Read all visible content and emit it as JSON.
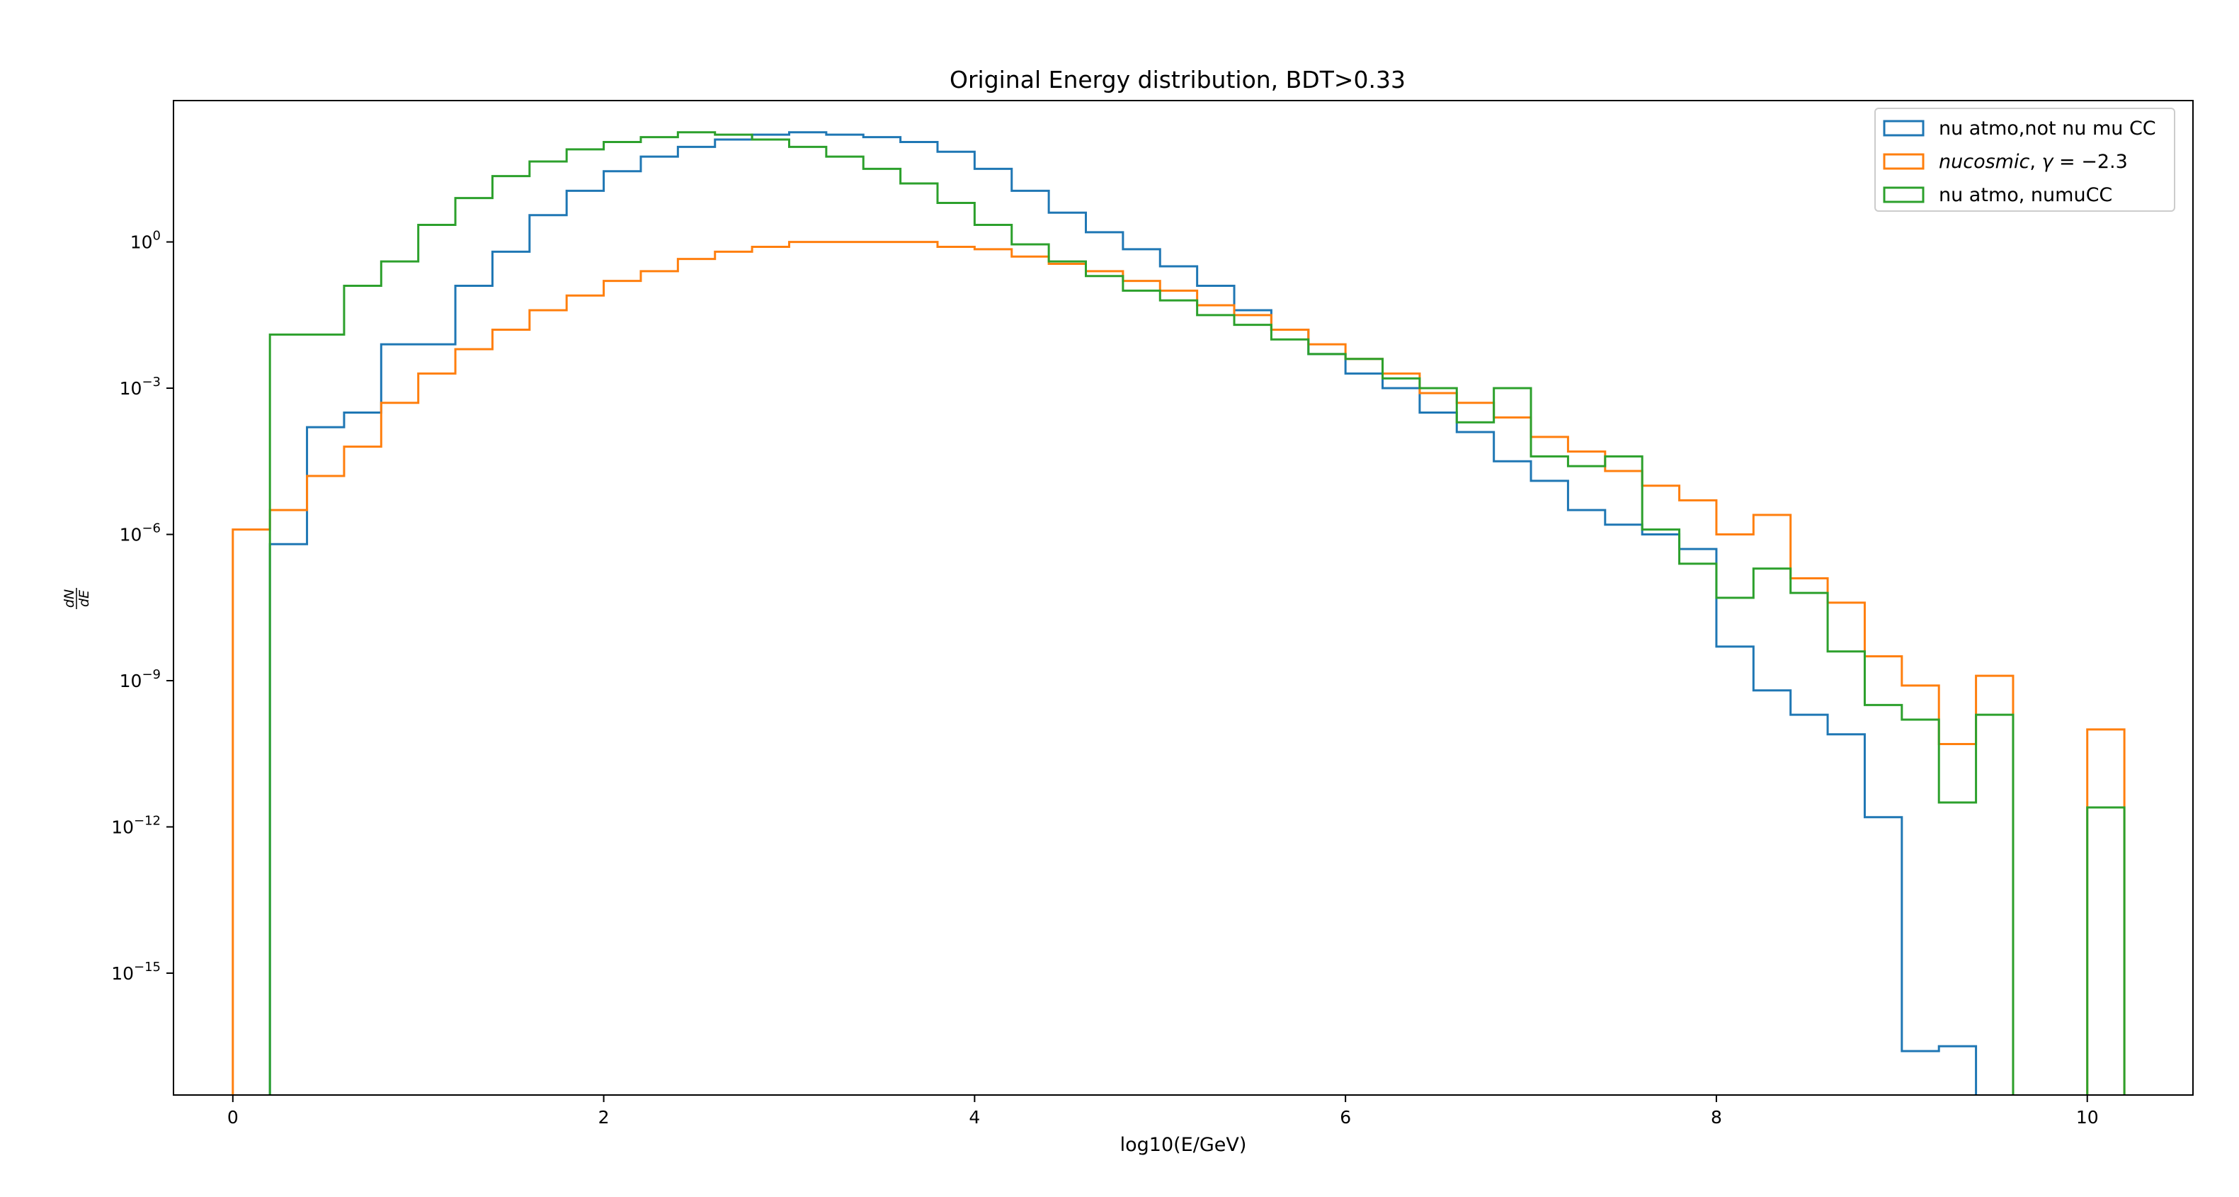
{
  "chart_data": {
    "type": "histogram-step",
    "title": "Original Energy distribution, BDT>0.33",
    "xlabel": "log10(E/GeV)",
    "ylabel": "dN/dE",
    "ylabel_num": "dN",
    "ylabel_den": "dE",
    "xlim": [
      -0.32,
      10.57
    ],
    "ylim_log10": [
      -17.5,
      2.9
    ],
    "yscale": "log",
    "grid": false,
    "legend_position": "top-right",
    "x_ticks": [
      "0",
      "2",
      "4",
      "6",
      "8",
      "10"
    ],
    "y_ticks": [
      {
        "base": "10",
        "exp": "0"
      },
      {
        "base": "10",
        "exp": "−3"
      },
      {
        "base": "10",
        "exp": "−6"
      },
      {
        "base": "10",
        "exp": "−9"
      },
      {
        "base": "10",
        "exp": "−12"
      },
      {
        "base": "10",
        "exp": "−15"
      }
    ],
    "bin_edges": [
      0.0,
      0.2,
      0.4,
      0.6,
      0.8,
      1.0,
      1.2,
      1.4,
      1.6,
      1.8,
      2.0,
      2.2,
      2.4,
      2.6,
      2.8,
      3.0,
      3.2,
      3.4,
      3.6,
      3.8,
      4.0,
      4.2,
      4.4,
      4.6,
      4.8,
      5.0,
      5.2,
      5.4,
      5.6,
      5.8,
      6.0,
      6.2,
      6.4,
      6.6,
      6.8,
      7.0,
      7.2,
      7.4,
      7.6,
      7.8,
      8.0,
      8.2,
      8.4,
      8.6,
      8.8,
      9.0,
      9.2,
      9.4,
      9.6,
      9.8,
      10.0,
      10.2
    ],
    "series": [
      {
        "name": "nu atmo,not nu mu CC",
        "label_parts": [
          {
            "text": "nu atmo,not nu mu CC",
            "italic": false
          }
        ],
        "color": "#1f77b4",
        "log10_values": [
          null,
          -6.2,
          -3.8,
          -3.5,
          -2.1,
          -2.1,
          -0.9,
          -0.2,
          0.55,
          1.05,
          1.45,
          1.75,
          1.95,
          2.1,
          2.2,
          2.25,
          2.2,
          2.15,
          2.05,
          1.85,
          1.5,
          1.05,
          0.6,
          0.2,
          -0.15,
          -0.5,
          -0.9,
          -1.4,
          -1.8,
          -2.3,
          -2.7,
          -3.0,
          -3.5,
          -3.9,
          -4.5,
          -4.9,
          -5.5,
          -5.8,
          -6.0,
          -6.3,
          -8.3,
          -9.2,
          -9.7,
          -10.1,
          -11.8,
          -16.6,
          -16.5,
          null,
          null,
          null,
          null,
          null
        ]
      },
      {
        "name": "nucosmic, γ= −2.3",
        "label_parts": [
          {
            "text": "nucosmic",
            "italic": true
          },
          {
            "text": ", ",
            "italic": false
          },
          {
            "text": "γ",
            "italic": true
          },
          {
            "text": " = −2.3",
            "italic": false
          }
        ],
        "color": "#ff7f0e",
        "log10_values": [
          -5.9,
          -5.5,
          -4.8,
          -4.2,
          -3.3,
          -2.7,
          -2.2,
          -1.8,
          -1.4,
          -1.1,
          -0.8,
          -0.6,
          -0.35,
          -0.2,
          -0.1,
          0.0,
          0.0,
          0.0,
          0.0,
          -0.1,
          -0.15,
          -0.3,
          -0.45,
          -0.6,
          -0.8,
          -1.0,
          -1.3,
          -1.5,
          -1.8,
          -2.1,
          -2.4,
          -2.7,
          -3.1,
          -3.3,
          -3.6,
          -4.0,
          -4.3,
          -4.7,
          -5.0,
          -5.3,
          -6.0,
          -5.6,
          -6.9,
          -7.4,
          -8.5,
          -9.1,
          -10.3,
          -8.9,
          null,
          null,
          -10.0,
          null
        ]
      },
      {
        "name": "nu atmo, numuCC",
        "label_parts": [
          {
            "text": "nu atmo, numuCC",
            "italic": false
          }
        ],
        "color": "#2ca02c",
        "log10_values": [
          null,
          -1.9,
          -1.9,
          -0.9,
          -0.4,
          0.35,
          0.9,
          1.35,
          1.65,
          1.9,
          2.05,
          2.15,
          2.25,
          2.2,
          2.1,
          1.95,
          1.75,
          1.5,
          1.2,
          0.8,
          0.35,
          -0.05,
          -0.4,
          -0.7,
          -1.0,
          -1.2,
          -1.5,
          -1.7,
          -2.0,
          -2.3,
          -2.4,
          -2.8,
          -3.0,
          -3.7,
          -3.0,
          -4.4,
          -4.6,
          -4.4,
          -5.9,
          -6.6,
          -7.3,
          -6.7,
          -7.2,
          -8.4,
          -9.5,
          -9.8,
          -11.5,
          -9.7,
          null,
          null,
          -11.6,
          null
        ]
      }
    ]
  }
}
